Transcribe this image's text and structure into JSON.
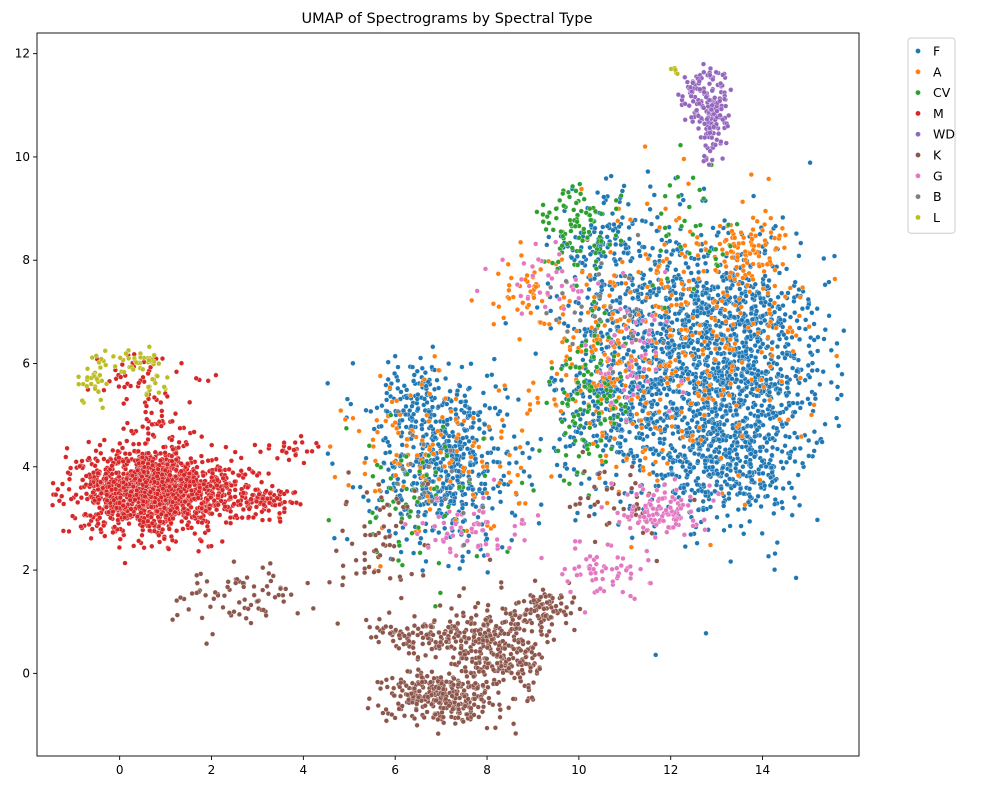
{
  "chart_data": {
    "type": "scatter",
    "title": "UMAP of Spectrograms by Spectral Type",
    "xlabel": "",
    "ylabel": "",
    "xlim": [
      -1.8,
      16.1
    ],
    "ylim": [
      -1.6,
      12.4
    ],
    "x_ticks": [
      "0",
      "2",
      "4",
      "6",
      "8",
      "10",
      "12",
      "14"
    ],
    "x_tick_values": [
      0,
      2,
      4,
      6,
      8,
      10,
      12,
      14
    ],
    "y_ticks": [
      "0",
      "2",
      "4",
      "6",
      "8",
      "10",
      "12"
    ],
    "y_tick_values": [
      0,
      2,
      4,
      6,
      8,
      10,
      12
    ],
    "grid": false,
    "legend_position": "outside-top-right",
    "series": [
      {
        "name": "F",
        "color": "#1f77b4",
        "clusters": [
          {
            "cx": 13.3,
            "cy": 5.6,
            "sx": 1.05,
            "sy": 1.25,
            "n": 1300
          },
          {
            "cx": 12.0,
            "cy": 7.0,
            "sx": 1.2,
            "sy": 0.9,
            "n": 500
          },
          {
            "cx": 10.8,
            "cy": 5.2,
            "sx": 0.7,
            "sy": 0.8,
            "n": 300
          },
          {
            "cx": 7.1,
            "cy": 3.9,
            "sx": 0.8,
            "sy": 0.75,
            "n": 480
          },
          {
            "cx": 6.6,
            "cy": 5.3,
            "sx": 0.75,
            "sy": 0.4,
            "n": 150
          },
          {
            "cx": 10.5,
            "cy": 8.3,
            "sx": 0.55,
            "sy": 0.5,
            "n": 120
          },
          {
            "cx": 13.0,
            "cy": 3.9,
            "sx": 0.8,
            "sy": 0.4,
            "n": 200
          }
        ]
      },
      {
        "name": "A",
        "color": "#ff7f0e",
        "clusters": [
          {
            "cx": 12.6,
            "cy": 6.6,
            "sx": 1.3,
            "sy": 1.2,
            "n": 260
          },
          {
            "cx": 13.7,
            "cy": 8.2,
            "sx": 0.45,
            "sy": 0.35,
            "n": 80
          },
          {
            "cx": 10.6,
            "cy": 6.0,
            "sx": 0.8,
            "sy": 1.1,
            "n": 140
          },
          {
            "cx": 6.9,
            "cy": 4.2,
            "sx": 0.95,
            "sy": 0.8,
            "n": 130
          },
          {
            "cx": 8.8,
            "cy": 7.4,
            "sx": 0.45,
            "sy": 0.35,
            "n": 40
          }
        ]
      },
      {
        "name": "CV",
        "color": "#2ca02c",
        "clusters": [
          {
            "cx": 10.0,
            "cy": 8.6,
            "sx": 0.45,
            "sy": 0.4,
            "n": 90
          },
          {
            "cx": 10.2,
            "cy": 5.3,
            "sx": 0.4,
            "sy": 0.8,
            "n": 110
          },
          {
            "cx": 6.4,
            "cy": 3.3,
            "sx": 0.8,
            "sy": 0.7,
            "n": 70
          },
          {
            "cx": 12.5,
            "cy": 8.6,
            "sx": 0.5,
            "sy": 0.6,
            "n": 35
          }
        ]
      },
      {
        "name": "M",
        "color": "#d62728",
        "clusters": [
          {
            "cx": 0.6,
            "cy": 3.55,
            "sx": 0.7,
            "sy": 0.4,
            "n": 1300
          },
          {
            "cx": 2.2,
            "cy": 3.5,
            "sx": 0.6,
            "sy": 0.3,
            "n": 200
          },
          {
            "cx": 3.1,
            "cy": 3.35,
            "sx": 0.4,
            "sy": 0.12,
            "n": 60
          },
          {
            "cx": 0.8,
            "cy": 4.9,
            "sx": 0.6,
            "sy": 0.5,
            "n": 60
          },
          {
            "cx": 0.3,
            "cy": 5.8,
            "sx": 0.5,
            "sy": 0.25,
            "n": 30
          },
          {
            "cx": 3.6,
            "cy": 4.35,
            "sx": 0.4,
            "sy": 0.12,
            "n": 25
          }
        ]
      },
      {
        "name": "WD",
        "color": "#9467bd",
        "clusters": [
          {
            "cx": 12.9,
            "cy": 10.8,
            "sx": 0.2,
            "sy": 0.45,
            "n": 150
          },
          {
            "cx": 12.5,
            "cy": 11.2,
            "sx": 0.15,
            "sy": 0.25,
            "n": 40
          }
        ]
      },
      {
        "name": "K",
        "color": "#8c564b",
        "clusters": [
          {
            "cx": 8.3,
            "cy": 0.5,
            "sx": 0.55,
            "sy": 0.45,
            "n": 300
          },
          {
            "cx": 7.0,
            "cy": -0.45,
            "sx": 0.6,
            "sy": 0.25,
            "n": 320
          },
          {
            "cx": 6.6,
            "cy": 0.7,
            "sx": 0.6,
            "sy": 0.15,
            "n": 120
          },
          {
            "cx": 9.3,
            "cy": 1.2,
            "sx": 0.3,
            "sy": 0.2,
            "n": 80
          },
          {
            "cx": 2.6,
            "cy": 1.5,
            "sx": 0.8,
            "sy": 0.3,
            "n": 80
          },
          {
            "cx": 5.7,
            "cy": 2.5,
            "sx": 0.5,
            "sy": 0.6,
            "n": 60
          },
          {
            "cx": 10.9,
            "cy": 3.3,
            "sx": 0.5,
            "sy": 0.5,
            "n": 40
          }
        ]
      },
      {
        "name": "G",
        "color": "#e377c2",
        "clusters": [
          {
            "cx": 11.8,
            "cy": 3.2,
            "sx": 0.4,
            "sy": 0.25,
            "n": 110
          },
          {
            "cx": 10.6,
            "cy": 2.0,
            "sx": 0.5,
            "sy": 0.25,
            "n": 60
          },
          {
            "cx": 7.6,
            "cy": 2.8,
            "sx": 0.6,
            "sy": 0.3,
            "n": 60
          },
          {
            "cx": 11.2,
            "cy": 6.2,
            "sx": 0.5,
            "sy": 0.6,
            "n": 50
          },
          {
            "cx": 9.2,
            "cy": 7.6,
            "sx": 0.5,
            "sy": 0.4,
            "n": 35
          }
        ]
      },
      {
        "name": "B",
        "color": "#7f7f7f",
        "clusters": [
          {
            "cx": 10.6,
            "cy": 7.0,
            "sx": 0.6,
            "sy": 0.6,
            "n": 30
          },
          {
            "cx": 6.8,
            "cy": 3.8,
            "sx": 0.6,
            "sy": 0.6,
            "n": 20
          }
        ]
      },
      {
        "name": "L",
        "color": "#bcbd22",
        "clusters": [
          {
            "cx": -0.55,
            "cy": 5.7,
            "sx": 0.15,
            "sy": 0.25,
            "n": 35
          },
          {
            "cx": 0.4,
            "cy": 6.05,
            "sx": 0.3,
            "sy": 0.1,
            "n": 35
          },
          {
            "cx": 0.8,
            "cy": 5.65,
            "sx": 0.2,
            "sy": 0.15,
            "n": 15
          },
          {
            "cx": 12.1,
            "cy": 11.7,
            "sx": 0.08,
            "sy": 0.05,
            "n": 5
          }
        ]
      }
    ]
  }
}
